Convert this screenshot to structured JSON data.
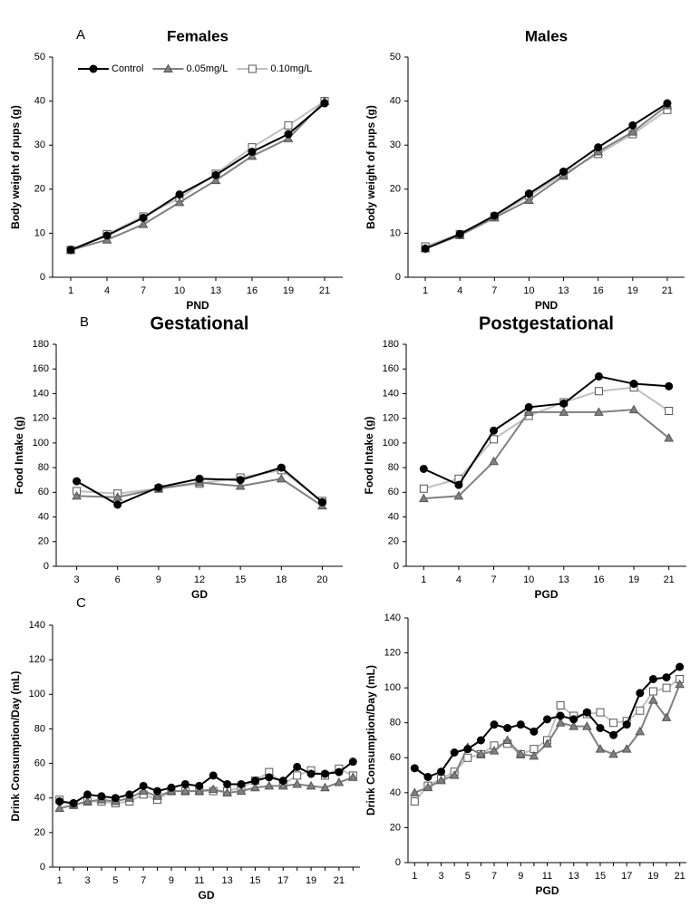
{
  "chart_data": [
    {
      "type": "line",
      "panel_label": "A",
      "title": "Females",
      "x_label": "PND",
      "y_label": "Body weight of pups (g)",
      "categories": [
        "1",
        "4",
        "7",
        "10",
        "13",
        "16",
        "19",
        "21"
      ],
      "ylim": [
        0,
        50
      ],
      "yticks": [
        0,
        10,
        20,
        30,
        40,
        50
      ],
      "legend": "top",
      "series": [
        {
          "name": "Control",
          "color": "#000000",
          "marker": "circle",
          "values": [
            6.2,
            9.5,
            13.5,
            18.8,
            23.2,
            28.5,
            32.5,
            39.5
          ]
        },
        {
          "name": "0.05mg/L",
          "color": "#808080",
          "marker": "triangle",
          "values": [
            6.2,
            8.5,
            12,
            17,
            22,
            27.5,
            31.5,
            40
          ]
        },
        {
          "name": "0.10mg/L",
          "color": "#c0c0c0",
          "marker": "square",
          "values": [
            6.2,
            9.8,
            13.8,
            18,
            23.5,
            29.5,
            34.5,
            40
          ]
        }
      ]
    },
    {
      "type": "line",
      "title": "Males",
      "x_label": "PND",
      "y_label": "Body weight of pups (g)",
      "categories": [
        "1",
        "4",
        "7",
        "10",
        "13",
        "16",
        "19",
        "21"
      ],
      "ylim": [
        0,
        50
      ],
      "yticks": [
        0,
        10,
        20,
        30,
        40,
        50
      ],
      "series": [
        {
          "color": "#000000",
          "marker": "circle",
          "values": [
            6.5,
            9.8,
            14,
            19,
            24,
            29.5,
            34.5,
            39.5
          ]
        },
        {
          "color": "#808080",
          "marker": "triangle",
          "values": [
            6.5,
            9.5,
            13.5,
            17.5,
            23,
            28.5,
            33,
            39
          ]
        },
        {
          "color": "#c0c0c0",
          "marker": "square",
          "values": [
            7,
            9.8,
            13.8,
            18.5,
            23.5,
            28,
            32.5,
            38
          ]
        }
      ]
    },
    {
      "type": "line",
      "panel_label": "B",
      "title": "Gestational",
      "x_label": "GD",
      "y_label": "Food Intake (g)",
      "categories": [
        "3",
        "6",
        "9",
        "12",
        "15",
        "18",
        "20"
      ],
      "ylim": [
        0,
        180
      ],
      "yticks": [
        0,
        20,
        40,
        60,
        80,
        100,
        120,
        140,
        160,
        180
      ],
      "series": [
        {
          "color": "#000000",
          "marker": "circle",
          "values": [
            69,
            50,
            64,
            71,
            70,
            80,
            52
          ]
        },
        {
          "color": "#808080",
          "marker": "triangle",
          "values": [
            57,
            56,
            63,
            68,
            65,
            71,
            49
          ]
        },
        {
          "color": "#c0c0c0",
          "marker": "square",
          "values": [
            61,
            59,
            63,
            67,
            72,
            78,
            53
          ]
        }
      ]
    },
    {
      "type": "line",
      "title": "Postgestational",
      "x_label": "PGD",
      "y_label": "Food Intake (g)",
      "categories": [
        "1",
        "4",
        "7",
        "10",
        "13",
        "16",
        "19",
        "21"
      ],
      "ylim": [
        0,
        180
      ],
      "yticks": [
        0,
        20,
        40,
        60,
        80,
        100,
        120,
        140,
        160,
        180
      ],
      "series": [
        {
          "color": "#000000",
          "marker": "circle",
          "values": [
            79,
            66,
            110,
            129,
            132,
            154,
            148,
            146
          ]
        },
        {
          "color": "#808080",
          "marker": "triangle",
          "values": [
            55,
            57,
            85,
            125,
            125,
            125,
            127,
            104
          ]
        },
        {
          "color": "#c0c0c0",
          "marker": "square",
          "values": [
            63,
            71,
            103,
            122,
            133,
            142,
            145,
            126
          ]
        }
      ]
    },
    {
      "type": "line",
      "panel_label": "C",
      "x_label": "GD",
      "y_label": "Drink Consumption/Day (mL)",
      "categories": [
        "1",
        null,
        "3",
        null,
        "5",
        null,
        "7",
        null,
        "9",
        null,
        "11",
        null,
        "13",
        null,
        "15",
        null,
        "17",
        null,
        "19",
        null,
        "21",
        null
      ],
      "ylim": [
        0,
        140
      ],
      "yticks": [
        0,
        20,
        40,
        60,
        80,
        100,
        120,
        140
      ],
      "series": [
        {
          "color": "#000000",
          "marker": "circle",
          "values": [
            38,
            37,
            42,
            41,
            40,
            42,
            47,
            44,
            46,
            48,
            47,
            53,
            48,
            48,
            50,
            52,
            50,
            58,
            54,
            54,
            55,
            61
          ]
        },
        {
          "color": "#808080",
          "marker": "triangle",
          "values": [
            34,
            36,
            38,
            39,
            38,
            40,
            44,
            41,
            44,
            44,
            44,
            45,
            43,
            44,
            46,
            47,
            47,
            48,
            47,
            46,
            49,
            52
          ]
        },
        {
          "color": "#c0c0c0",
          "marker": "square",
          "values": [
            39,
            36,
            38,
            38,
            37,
            38,
            42,
            39,
            44,
            44,
            44,
            44,
            44,
            46,
            50,
            55,
            48,
            53,
            56,
            53,
            57,
            53
          ]
        }
      ]
    },
    {
      "type": "line",
      "x_label": "PGD",
      "y_label": "Drink Consumption/Day (mL)",
      "categories": [
        "1",
        null,
        "3",
        null,
        "5",
        null,
        "7",
        null,
        "9",
        null,
        "11",
        null,
        "13",
        null,
        "15",
        null,
        "17",
        null,
        "19",
        null,
        "21"
      ],
      "ylim": [
        0,
        140
      ],
      "yticks": [
        0,
        20,
        40,
        60,
        80,
        100,
        120,
        140
      ],
      "series": [
        {
          "color": "#000000",
          "marker": "circle",
          "values": [
            54,
            49,
            52,
            63,
            65,
            70,
            79,
            77,
            79,
            75,
            82,
            84,
            82,
            86,
            77,
            73,
            79,
            97,
            105,
            106,
            112
          ]
        },
        {
          "color": "#808080",
          "marker": "triangle",
          "values": [
            40,
            43,
            47,
            50,
            66,
            62,
            64,
            70,
            62,
            61,
            68,
            80,
            78,
            78,
            65,
            62,
            65,
            75,
            93,
            83,
            102
          ]
        },
        {
          "color": "#c0c0c0",
          "marker": "square",
          "values": [
            35,
            44,
            48,
            52,
            60,
            62,
            67,
            68,
            62,
            65,
            70,
            90,
            84,
            85,
            86,
            80,
            81,
            87,
            98,
            100,
            105
          ]
        }
      ]
    }
  ]
}
